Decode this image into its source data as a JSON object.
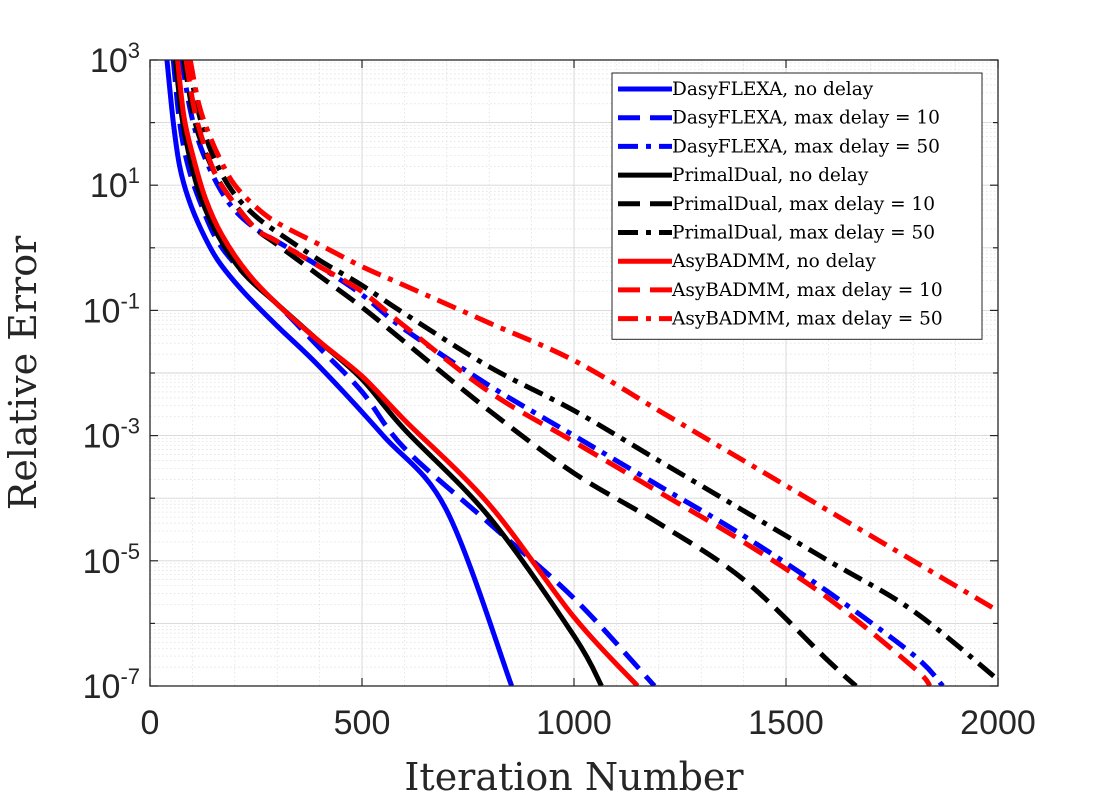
{
  "chart_data": {
    "type": "line",
    "xlabel": "Iteration Number",
    "ylabel": "Relative Error",
    "xlim": [
      0,
      2000
    ],
    "ylim_log10": [
      -7,
      3
    ],
    "yscale": "log",
    "grid": true,
    "minor_grid": true,
    "legend_position": "top-right",
    "x_ticks": [
      "0",
      "500",
      "1000",
      "1500",
      "2000"
    ],
    "y_ticks": [
      {
        "base": "10",
        "exp": "3"
      },
      {
        "base": "10",
        "exp": "1"
      },
      {
        "base": "10",
        "exp": "-1"
      },
      {
        "base": "10",
        "exp": "-3"
      },
      {
        "base": "10",
        "exp": "-5"
      },
      {
        "base": "10",
        "exp": "-7"
      }
    ],
    "series": [
      {
        "name": "DasyFLEXA, no delay",
        "color": "#0000ff",
        "style": "solid",
        "points": [
          [
            40,
            3
          ],
          [
            55,
            2.0
          ],
          [
            70,
            1.3
          ],
          [
            90,
            0.8
          ],
          [
            120,
            0.3
          ],
          [
            160,
            -0.2
          ],
          [
            220,
            -0.7
          ],
          [
            300,
            -1.25
          ],
          [
            400,
            -1.9
          ],
          [
            550,
            -3.0
          ],
          [
            700,
            -4.2
          ],
          [
            853,
            -7
          ]
        ]
      },
      {
        "name": "DasyFLEXA, max delay = 10",
        "color": "#0000ff",
        "style": "dashed",
        "points": [
          [
            55,
            3
          ],
          [
            70,
            2.0
          ],
          [
            90,
            1.3
          ],
          [
            120,
            0.7
          ],
          [
            160,
            0.1
          ],
          [
            220,
            -0.4
          ],
          [
            300,
            -0.9
          ],
          [
            400,
            -1.6
          ],
          [
            500,
            -2.3
          ],
          [
            600,
            -3.2
          ],
          [
            800,
            -4.4
          ],
          [
            1000,
            -5.6
          ],
          [
            1190,
            -7
          ]
        ]
      },
      {
        "name": "DasyFLEXA, max delay = 50",
        "color": "#0000ff",
        "style": "dashdot",
        "points": [
          [
            75,
            3
          ],
          [
            95,
            2.2
          ],
          [
            120,
            1.6
          ],
          [
            160,
            1.0
          ],
          [
            200,
            0.6
          ],
          [
            250,
            0.3
          ],
          [
            300,
            0.1
          ],
          [
            400,
            -0.3
          ],
          [
            500,
            -0.75
          ],
          [
            600,
            -1.3
          ],
          [
            800,
            -2.2
          ],
          [
            1000,
            -3.0
          ],
          [
            1200,
            -3.8
          ],
          [
            1400,
            -4.6
          ],
          [
            1600,
            -5.5
          ],
          [
            1800,
            -6.5
          ],
          [
            1870,
            -7
          ]
        ]
      },
      {
        "name": "PrimalDual, no delay",
        "color": "#000000",
        "style": "solid",
        "points": [
          [
            60,
            3
          ],
          [
            75,
            2.1
          ],
          [
            95,
            1.4
          ],
          [
            120,
            0.8
          ],
          [
            160,
            0.2
          ],
          [
            220,
            -0.4
          ],
          [
            300,
            -0.9
          ],
          [
            400,
            -1.5
          ],
          [
            500,
            -2.1
          ],
          [
            600,
            -2.9
          ],
          [
            800,
            -4.3
          ],
          [
            1000,
            -6.2
          ],
          [
            1065,
            -7
          ]
        ]
      },
      {
        "name": "PrimalDual, max delay = 10",
        "color": "#000000",
        "style": "dashed",
        "points": [
          [
            80,
            3
          ],
          [
            100,
            2.2
          ],
          [
            120,
            1.7
          ],
          [
            160,
            1.1
          ],
          [
            200,
            0.7
          ],
          [
            250,
            0.3
          ],
          [
            300,
            0.05
          ],
          [
            400,
            -0.45
          ],
          [
            500,
            -0.95
          ],
          [
            600,
            -1.5
          ],
          [
            800,
            -2.6
          ],
          [
            1000,
            -3.6
          ],
          [
            1200,
            -4.4
          ],
          [
            1400,
            -5.3
          ],
          [
            1600,
            -6.6
          ],
          [
            1665,
            -7
          ]
        ]
      },
      {
        "name": "PrimalDual, max delay = 50",
        "color": "#000000",
        "style": "dashdot",
        "points": [
          [
            90,
            3
          ],
          [
            110,
            2.3
          ],
          [
            130,
            1.8
          ],
          [
            160,
            1.3
          ],
          [
            200,
            0.85
          ],
          [
            250,
            0.5
          ],
          [
            300,
            0.25
          ],
          [
            400,
            -0.2
          ],
          [
            500,
            -0.6
          ],
          [
            600,
            -1.05
          ],
          [
            800,
            -1.9
          ],
          [
            1000,
            -2.6
          ],
          [
            1200,
            -3.4
          ],
          [
            1400,
            -4.2
          ],
          [
            1600,
            -5.0
          ],
          [
            1800,
            -5.8
          ],
          [
            2000,
            -6.9
          ]
        ]
      },
      {
        "name": "AsyBADMM, no delay",
        "color": "#ff0000",
        "style": "solid",
        "points": [
          [
            65,
            3
          ],
          [
            80,
            2.1
          ],
          [
            100,
            1.5
          ],
          [
            130,
            0.8
          ],
          [
            170,
            0.2
          ],
          [
            230,
            -0.4
          ],
          [
            300,
            -0.9
          ],
          [
            400,
            -1.5
          ],
          [
            500,
            -2.05
          ],
          [
            600,
            -2.75
          ],
          [
            800,
            -4.1
          ],
          [
            1000,
            -5.9
          ],
          [
            1150,
            -7
          ]
        ]
      },
      {
        "name": "AsyBADMM, max delay = 10",
        "color": "#ff0000",
        "style": "dashed",
        "points": [
          [
            85,
            3
          ],
          [
            105,
            2.2
          ],
          [
            130,
            1.6
          ],
          [
            160,
            1.1
          ],
          [
            200,
            0.7
          ],
          [
            250,
            0.3
          ],
          [
            300,
            0.1
          ],
          [
            400,
            -0.3
          ],
          [
            500,
            -0.7
          ],
          [
            600,
            -1.25
          ],
          [
            800,
            -2.3
          ],
          [
            1000,
            -3.1
          ],
          [
            1200,
            -3.9
          ],
          [
            1400,
            -4.7
          ],
          [
            1600,
            -5.6
          ],
          [
            1800,
            -6.7
          ],
          [
            1840,
            -7
          ]
        ]
      },
      {
        "name": "AsyBADMM, max delay = 50",
        "color": "#ff0000",
        "style": "dashdot",
        "points": [
          [
            95,
            3
          ],
          [
            115,
            2.3
          ],
          [
            140,
            1.8
          ],
          [
            170,
            1.35
          ],
          [
            200,
            1.0
          ],
          [
            250,
            0.65
          ],
          [
            300,
            0.4
          ],
          [
            400,
            0.05
          ],
          [
            500,
            -0.3
          ],
          [
            600,
            -0.6
          ],
          [
            800,
            -1.2
          ],
          [
            1000,
            -1.8
          ],
          [
            1200,
            -2.6
          ],
          [
            1400,
            -3.4
          ],
          [
            1600,
            -4.2
          ],
          [
            1800,
            -5.0
          ],
          [
            2000,
            -5.8
          ]
        ]
      }
    ]
  }
}
